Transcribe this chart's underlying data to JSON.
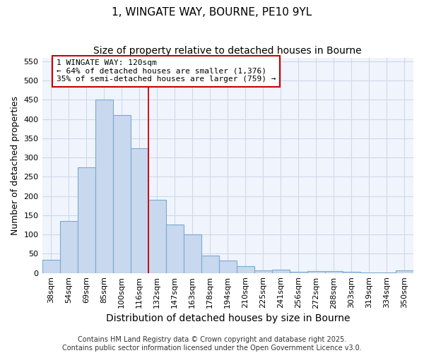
{
  "title": "1, WINGATE WAY, BOURNE, PE10 9YL",
  "subtitle": "Size of property relative to detached houses in Bourne",
  "xlabel": "Distribution of detached houses by size in Bourne",
  "ylabel": "Number of detached properties",
  "categories": [
    "38sqm",
    "54sqm",
    "69sqm",
    "85sqm",
    "100sqm",
    "116sqm",
    "132sqm",
    "147sqm",
    "163sqm",
    "178sqm",
    "194sqm",
    "210sqm",
    "225sqm",
    "241sqm",
    "256sqm",
    "272sqm",
    "288sqm",
    "303sqm",
    "319sqm",
    "334sqm",
    "350sqm"
  ],
  "values": [
    35,
    135,
    275,
    450,
    410,
    325,
    190,
    125,
    100,
    45,
    32,
    18,
    7,
    8,
    3,
    4,
    4,
    2,
    1,
    1,
    6
  ],
  "bar_color": "#c8d8ee",
  "bar_edge_color": "#7aaad0",
  "vline_x_index": 5,
  "vline_color": "#cc0000",
  "annotation_text": "1 WINGATE WAY: 120sqm\n← 64% of detached houses are smaller (1,376)\n35% of semi-detached houses are larger (759) →",
  "annotation_box_facecolor": "#ffffff",
  "annotation_box_edgecolor": "#cc0000",
  "ylim": [
    0,
    560
  ],
  "yticks": [
    0,
    50,
    100,
    150,
    200,
    250,
    300,
    350,
    400,
    450,
    500,
    550
  ],
  "plot_bg_color": "#f0f4fc",
  "fig_bg_color": "#ffffff",
  "grid_color": "#d0d8e8",
  "footer1": "Contains HM Land Registry data © Crown copyright and database right 2025.",
  "footer2": "Contains public sector information licensed under the Open Government Licence v3.0.",
  "title_fontsize": 11,
  "subtitle_fontsize": 10,
  "xlabel_fontsize": 10,
  "ylabel_fontsize": 9,
  "tick_fontsize": 8,
  "annotation_fontsize": 8,
  "footer_fontsize": 7
}
